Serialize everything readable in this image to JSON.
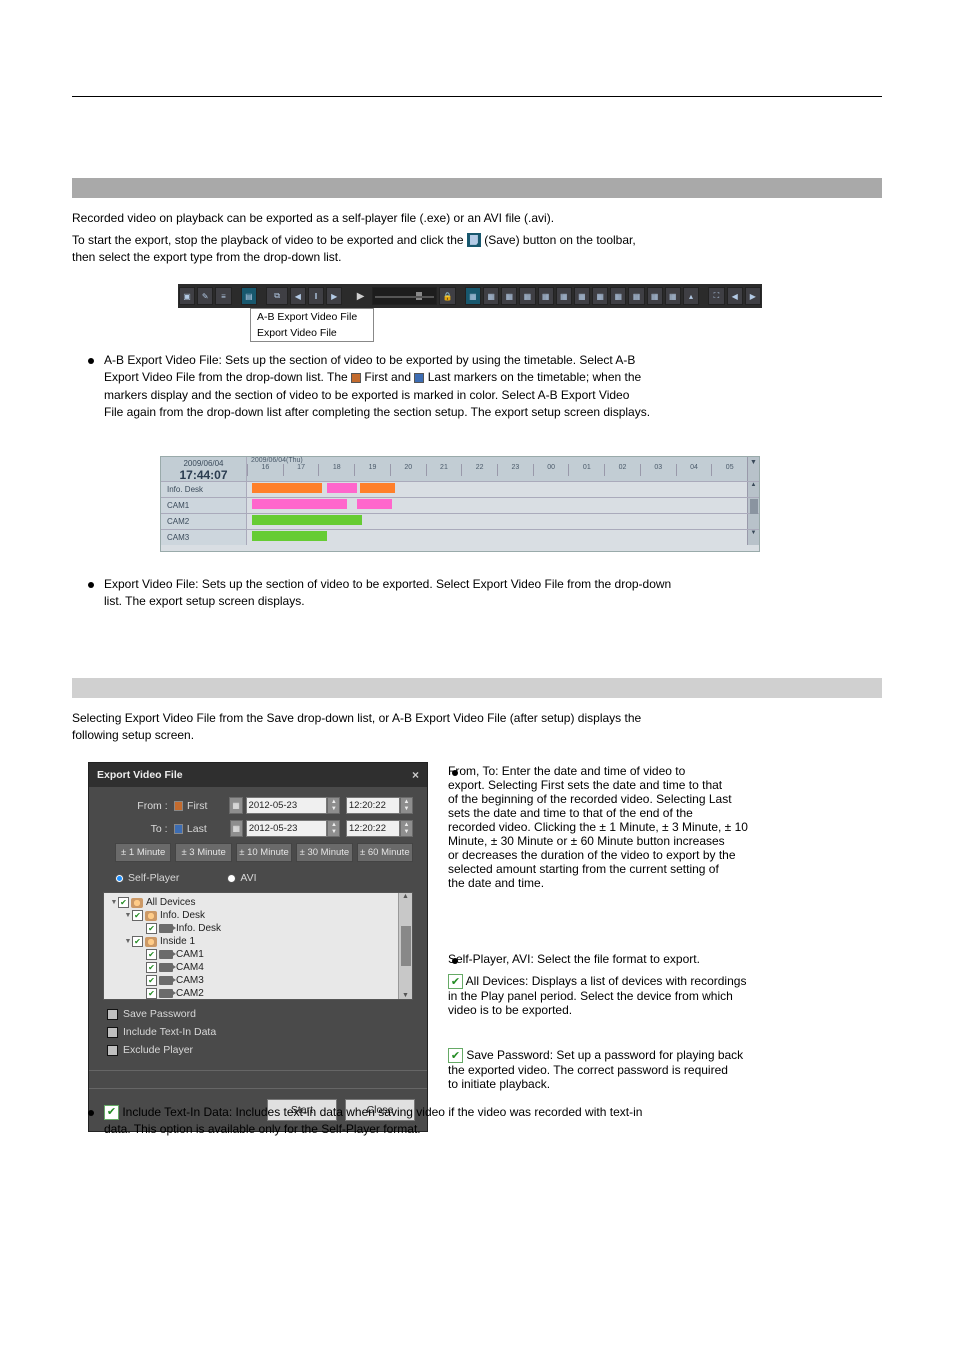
{
  "page": {
    "section_title": "",
    "intro_text_1": "",
    "intro_text_2": ""
  },
  "save_icon_line": " (Save) button on the toolbar,",
  "toolbar": {
    "icon_colors": {
      "normal": "#b4cbe6",
      "bg": "#3f3f44",
      "highlight": "#18586e"
    }
  },
  "save_menu": {
    "item1": "A-B Export Video File",
    "item2": "Export Video File"
  },
  "ab_export": {
    "label": "A-B Export Video File:",
    "desc": " Sets up the section of video to be exported by using the timetable. Select A-B",
    "line2": "Export Video File from the drop-down list. The ",
    "first": "First",
    "and": " and ",
    "last": "Last",
    "line3": " markers on the timetable; when the",
    "line4": "markers display and the section of video to be exported is marked in color. Select A-B Export Video",
    "line5": "File again from the drop-down list after completing the section setup. The export setup screen displays."
  },
  "timetable": {
    "date_small": "2009/06/04",
    "time_big": "17:44:07",
    "date_label": "2009/06/04(Thu)",
    "hours": [
      "16",
      "17",
      "18",
      "19",
      "20",
      "21",
      "22",
      "23",
      "00",
      "01",
      "02",
      "03",
      "04",
      "05"
    ],
    "expand_label": "▼",
    "rows": [
      {
        "label": "Info. Desk",
        "bars": [
          {
            "left_pct": 1,
            "width_pct": 14,
            "color": "#ff7f2a"
          },
          {
            "left_pct": 16,
            "width_pct": 6,
            "color": "#ff66cc"
          },
          {
            "left_pct": 22.5,
            "width_pct": 7,
            "color": "#ff7f2a"
          }
        ]
      },
      {
        "label": "CAM1",
        "bars": [
          {
            "left_pct": 1,
            "width_pct": 19,
            "color": "#ff66cc"
          },
          {
            "left_pct": 22,
            "width_pct": 7,
            "color": "#ff66cc"
          }
        ]
      },
      {
        "label": "CAM2",
        "bars": [
          {
            "left_pct": 1,
            "width_pct": 22,
            "color": "#66cc33"
          }
        ]
      },
      {
        "label": "CAM3",
        "bars": [
          {
            "left_pct": 1,
            "width_pct": 15,
            "color": "#66cc33"
          }
        ]
      }
    ]
  },
  "export_file": {
    "label": "Export Video File:",
    "desc": " Sets up the section of video to be exported. Select ",
    "evf": "Export Video File",
    "tail": " from the drop-down",
    "line2": "list. The export setup screen displays."
  },
  "setup_section_title": "",
  "setup_intro": "Selecting Export Video File from the Save drop-down list, or A-B Export Video File (after setup) displays the",
  "setup_intro2": "following setup screen.",
  "dialog": {
    "title": "Export Video File",
    "from_label": "From :",
    "to_label": "To :",
    "first_label": "First",
    "last_label": "Last",
    "from_date": "2012-05-23",
    "from_time": "12:20:22",
    "to_date": "2012-05-23",
    "to_time": "12:20:22",
    "durations": [
      "± 1 Minute",
      "± 3 Minute",
      "± 10 Minute",
      "± 30 Minute",
      "± 60 Minute"
    ],
    "fmt1": "Self-Player",
    "fmt2": "AVI",
    "tree": {
      "all": "All Devices",
      "g1": "Info. Desk",
      "g1c1": "Info. Desk",
      "g2": "Inside 1",
      "g2cams": [
        "CAM1",
        "CAM4",
        "CAM3",
        "CAM2"
      ]
    },
    "opt_save_pw": "Save Password",
    "opt_textin": "Include Text-In Data",
    "opt_exclude": "Exclude Player",
    "btn_start": "Start",
    "btn_close": "Close"
  },
  "rhs": {
    "fromto_label": "From, To:",
    "fromto_text": " Enter the date and time of video to",
    "fromto_l2": "export. Selecting First sets the date and time to that",
    "fromto_l3": "of the beginning of the recorded video. Selecting Last",
    "fromto_l4": "sets the date and time to that of the end of the",
    "fromto_l5": "recorded video. Clicking the",
    "dur_1": " 1 Minute, ",
    "dur_3": " 3 Minute, ",
    "dur_10": " 10",
    "dur_10b": "Minute, ",
    "dur_30": " 30 Minute or ",
    "dur_60": " 60 Minute",
    "dur_tail": " button increases",
    "fromto_l6": "or decreases the duration of the video to export by the",
    "fromto_l7": "selected amount starting from the current setting of",
    "fromto_l8": "the date and time.",
    "sp_label": "Self-Player, AVI:",
    "sp_text": " Select the file format to export.",
    "sp_chk_pre": " ",
    "sp_all": "All Devices:",
    "sp_all_text": " Displays a list of devices with recordings",
    "sp_all_l2": "in the Play panel period. Select the device from which",
    "sp_all_l3": "video is to be exported.",
    "svpw": " ",
    "svpw_bold": "Save Password:",
    "svpw_text": " Set up a password for playing back",
    "svpw_l2": "the exported video. The correct password is required",
    "svpw_l3": "to initiate playback."
  },
  "bottom": {
    "textin_label": "Include Text-In Data:",
    "textin_text": " Includes text-in data when saving video if the video was recorded with text-in",
    "textin_l2": "data. This option is available only for the Self-Player format."
  }
}
